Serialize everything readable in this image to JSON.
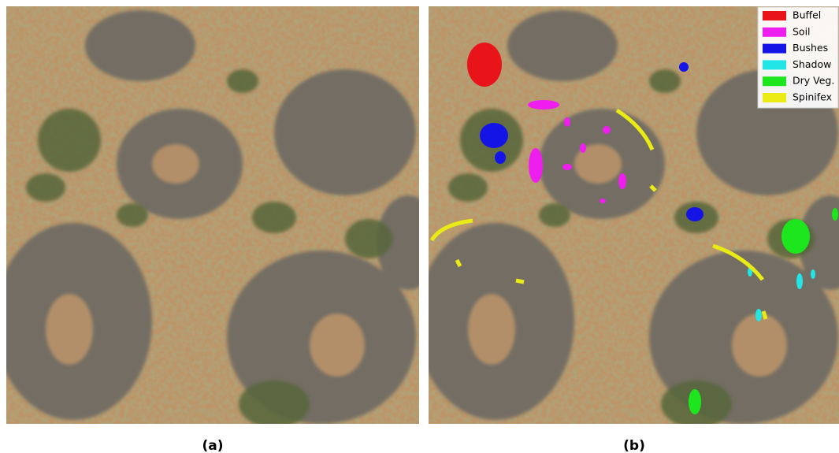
{
  "figure": {
    "panels": [
      {
        "label": "(a)"
      },
      {
        "label": "(b)"
      }
    ],
    "legend": [
      {
        "name": "Buffel",
        "color": "#e8141a"
      },
      {
        "name": "Soil",
        "color": "#ee1fee"
      },
      {
        "name": "Bushes",
        "color": "#1414e6"
      },
      {
        "name": "Shadow",
        "color": "#22e6e6"
      },
      {
        "name": "Dry Veg.",
        "color": "#1ee61e"
      },
      {
        "name": "Spinifex",
        "color": "#eaea14"
      }
    ]
  }
}
